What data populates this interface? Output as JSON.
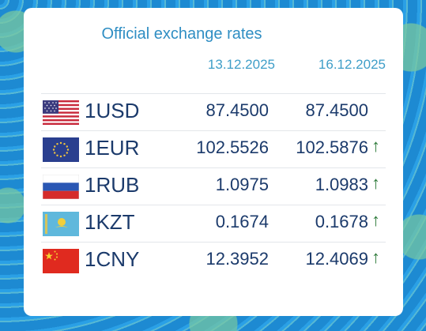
{
  "header": {
    "title": "Official exchange rates",
    "date1": "13.12.2025",
    "date2": "16.12.2025"
  },
  "rates": [
    {
      "flag": "us-flag-icon",
      "code": "1USD",
      "v1": "87.4500",
      "v2": "87.4500",
      "arrow": ""
    },
    {
      "flag": "eu-flag-icon",
      "code": "1EUR",
      "v1": "102.5526",
      "v2": "102.5876",
      "arrow": "↑"
    },
    {
      "flag": "ru-flag-icon",
      "code": "1RUB",
      "v1": "1.0975",
      "v2": "1.0983",
      "arrow": "↑"
    },
    {
      "flag": "kz-flag-icon",
      "code": "1KZT",
      "v1": "0.1674",
      "v2": "0.1678",
      "arrow": "↑"
    },
    {
      "flag": "cn-flag-icon",
      "code": "1CNY",
      "v1": "12.3952",
      "v2": "12.4069",
      "arrow": "↑"
    }
  ],
  "colors": {
    "title": "#2f8ec3",
    "values": "#1b3a6b",
    "arrow_up": "#2d7a3a",
    "background": "#1f8fd6"
  }
}
